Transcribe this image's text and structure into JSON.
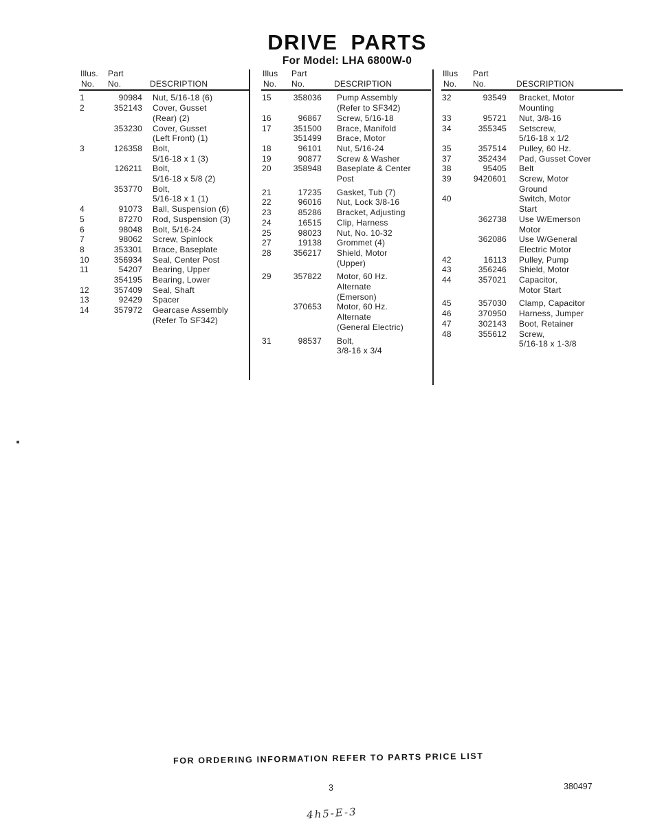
{
  "header": {
    "title": "DRIVE PARTS",
    "subtitle": "For Model: LHA 6800W-0"
  },
  "columns": [
    {
      "header": {
        "illus_label": "Illus.",
        "part_label": "Part",
        "no_label_1": "No.",
        "no_label_2": "No.",
        "description_label": "DESCRIPTION"
      },
      "rows": [
        {
          "illus": "1",
          "part": "90984",
          "desc_lines": [
            "Nut, 5/16-18 (6)"
          ]
        },
        {
          "illus": "2",
          "part": "352143",
          "desc_lines": [
            "Cover, Gusset",
            "(Rear) (2)"
          ]
        },
        {
          "illus": "",
          "part": "353230",
          "desc_lines": [
            "Cover, Gusset",
            "(Left Front) (1)"
          ]
        },
        {
          "illus": "3",
          "part": "126358",
          "desc_lines": [
            "Bolt,",
            "5/16-18 x 1 (3)"
          ]
        },
        {
          "illus": "",
          "part": "126211",
          "desc_lines": [
            "Bolt,",
            "5/16-18 x 5/8 (2)"
          ]
        },
        {
          "illus": "",
          "part": "353770",
          "desc_lines": [
            "Bolt,",
            "5/16-18 x 1 (1)"
          ]
        },
        {
          "illus": "4",
          "part": "91073",
          "desc_lines": [
            "Ball, Suspension (6)"
          ]
        },
        {
          "illus": "5",
          "part": "87270",
          "desc_lines": [
            "Rod, Suspension (3)"
          ]
        },
        {
          "illus": "6",
          "part": "98048",
          "desc_lines": [
            "Bolt, 5/16-24"
          ]
        },
        {
          "illus": "7",
          "part": "98062",
          "desc_lines": [
            "Screw, Spinlock"
          ]
        },
        {
          "illus": "8",
          "part": "353301",
          "desc_lines": [
            "Brace, Baseplate"
          ]
        },
        {
          "illus": "10",
          "part": "356934",
          "desc_lines": [
            "Seal, Center Post"
          ]
        },
        {
          "illus": "11",
          "part": "54207",
          "desc_lines": [
            "Bearing, Upper"
          ]
        },
        {
          "illus": "",
          "part": "354195",
          "desc_lines": [
            "Bearing, Lower"
          ]
        },
        {
          "illus": "12",
          "part": "357409",
          "desc_lines": [
            "Seal, Shaft"
          ]
        },
        {
          "illus": "13",
          "part": "92429",
          "desc_lines": [
            "Spacer"
          ]
        },
        {
          "illus": "14",
          "part": "357972",
          "desc_lines": [
            "Gearcase Assembly",
            "(Refer To SF342)"
          ]
        }
      ]
    },
    {
      "header": {
        "illus_label": "Illus",
        "part_label": "Part",
        "no_label_1": "No.",
        "no_label_2": "No.",
        "description_label": "DESCRIPTION"
      },
      "rows": [
        {
          "illus": "15",
          "part": "358036",
          "desc_lines": [
            "Pump Assembly",
            "(Refer to SF342)"
          ]
        },
        {
          "illus": "16",
          "part": "96867",
          "desc_lines": [
            "Screw, 5/16-18"
          ]
        },
        {
          "illus": "17",
          "part": "351500",
          "desc_lines": [
            "Brace, Manifold"
          ]
        },
        {
          "illus": "",
          "part": "351499",
          "desc_lines": [
            "Brace, Motor"
          ]
        },
        {
          "illus": "18",
          "part": "96101",
          "desc_lines": [
            "Nut, 5/16-24"
          ]
        },
        {
          "illus": "19",
          "part": "90877",
          "desc_lines": [
            "Screw & Washer"
          ]
        },
        {
          "illus": "20",
          "part": "358948",
          "desc_lines": [
            "Baseplate & Center",
            "Post"
          ]
        },
        {
          "illus": "21",
          "part": "17235",
          "desc_lines": [
            "Gasket, Tub (7)"
          ],
          "gap": true
        },
        {
          "illus": "22",
          "part": "96016",
          "desc_lines": [
            "Nut, Lock 3/8-16"
          ]
        },
        {
          "illus": "23",
          "part": "85286",
          "desc_lines": [
            "Bracket, Adjusting"
          ]
        },
        {
          "illus": "24",
          "part": "16515",
          "desc_lines": [
            "Clip, Harness"
          ]
        },
        {
          "illus": "25",
          "part": "98023",
          "desc_lines": [
            "Nut, No. 10-32"
          ]
        },
        {
          "illus": "27",
          "part": "19138",
          "desc_lines": [
            "Grommet (4)"
          ]
        },
        {
          "illus": "28",
          "part": "356217",
          "desc_lines": [
            "Shield, Motor",
            "(Upper)"
          ]
        },
        {
          "illus": "29",
          "part": "357822",
          "desc_lines": [
            "Motor, 60 Hz.",
            "Alternate",
            "(Emerson)"
          ],
          "gap": true
        },
        {
          "illus": "",
          "part": "370653",
          "desc_lines": [
            "Motor, 60 Hz.",
            "Alternate",
            "(General Electric)"
          ]
        },
        {
          "illus": "31",
          "part": "98537",
          "desc_lines": [
            "Bolt,",
            "3/8-16 x 3/4"
          ],
          "gap": true
        }
      ]
    },
    {
      "header": {
        "illus_label": "Illus",
        "part_label": "Part",
        "no_label_1": "No.",
        "no_label_2": "No.",
        "description_label": "DESCRIPTION"
      },
      "rows": [
        {
          "illus": "32",
          "part": "93549",
          "desc_lines": [
            "Bracket, Motor",
            "Mounting"
          ]
        },
        {
          "illus": "33",
          "part": "95721",
          "desc_lines": [
            "Nut, 3/8-16"
          ]
        },
        {
          "illus": "34",
          "part": "355345",
          "desc_lines": [
            "Setscrew,",
            "5/16-18 x 1/2"
          ]
        },
        {
          "illus": "35",
          "part": "357514",
          "desc_lines": [
            "Pulley, 60 Hz."
          ]
        },
        {
          "illus": "37",
          "part": "352434",
          "desc_lines": [
            "Pad, Gusset Cover"
          ]
        },
        {
          "illus": "38",
          "part": "95405",
          "desc_lines": [
            "Belt"
          ]
        },
        {
          "illus": "39",
          "part": "9420601",
          "desc_lines": [
            "Screw, Motor",
            "Ground"
          ]
        },
        {
          "illus": "40",
          "part": "",
          "desc_lines": [
            "Switch, Motor",
            "Start"
          ]
        },
        {
          "illus": "",
          "part": "362738",
          "desc_lines": [
            "Use W/Emerson",
            "Motor"
          ]
        },
        {
          "illus": "",
          "part": "362086",
          "desc_lines": [
            "Use W/General",
            "Electric Motor"
          ]
        },
        {
          "illus": "42",
          "part": "16113",
          "desc_lines": [
            "Pulley, Pump"
          ]
        },
        {
          "illus": "43",
          "part": "356246",
          "desc_lines": [
            "Shield, Motor"
          ]
        },
        {
          "illus": "44",
          "part": "357021",
          "desc_lines": [
            "Capacitor,",
            "Motor Start"
          ]
        },
        {
          "illus": "45",
          "part": "357030",
          "desc_lines": [
            "Clamp, Capacitor"
          ],
          "gap": true
        },
        {
          "illus": "46",
          "part": "370950",
          "desc_lines": [
            "Harness, Jumper"
          ]
        },
        {
          "illus": "47",
          "part": "302143",
          "desc_lines": [
            "Boot, Retainer"
          ]
        },
        {
          "illus": "48",
          "part": "355612",
          "desc_lines": [
            "Screw,",
            "5/16-18 x 1-3/8"
          ]
        }
      ]
    }
  ],
  "footer": {
    "ordering_note": "FOR ORDERING INFORMATION REFER TO PARTS PRICE LIST",
    "page_number": "3",
    "document_number": "380497",
    "handwritten_mark": "4h5-E-3"
  }
}
